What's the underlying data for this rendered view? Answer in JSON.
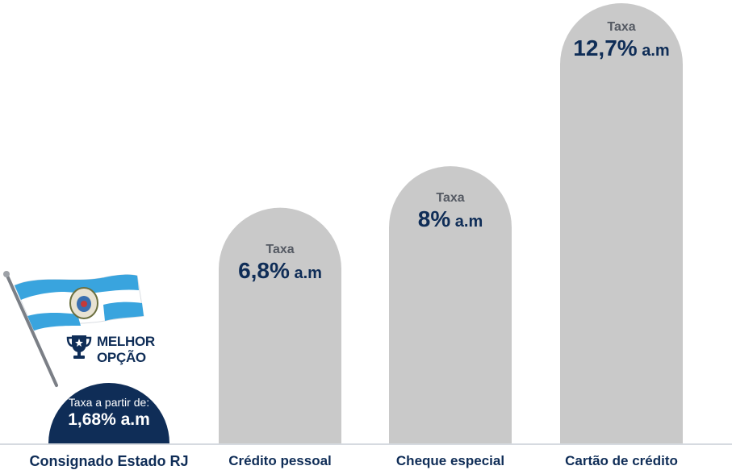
{
  "chart_data": {
    "type": "bar",
    "categories": [
      "Consignado Estado RJ",
      "Crédito pessoal",
      "Cheque especial",
      "Cartão de crédito"
    ],
    "values": [
      1.68,
      6.8,
      8,
      12.7
    ],
    "value_labels": [
      "1,68% a.m",
      "6,8% a.m",
      "8% a.m",
      "12,7% a.m"
    ],
    "value_prefix": "Taxa",
    "best_option_prefix": "Taxa a partir de:",
    "best_option_badge": [
      "MELHOR",
      "OPÇÃO"
    ],
    "grid": false,
    "legend": "none"
  },
  "colors": {
    "bar": "#c9c9c9",
    "highlight": "#0f2d57",
    "label_text": "#0f2d57",
    "prefix_text": "#555a63",
    "flag_blue": "#39a4de",
    "baseline": "#c9ced6"
  },
  "icons": [
    "trophy-icon",
    "flag-rj-icon"
  ]
}
